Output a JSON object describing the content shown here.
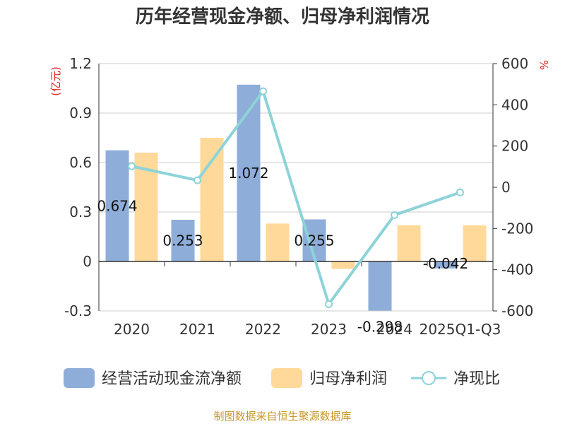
{
  "chart_data": {
    "type": "bar",
    "title": "历年经营现金净额、归母净利润情况",
    "categories": [
      "2020",
      "2021",
      "2022",
      "2023",
      "2024",
      "2025Q1-Q3"
    ],
    "left_axis": {
      "unit": "(亿元)",
      "min": -0.3,
      "max": 1.2,
      "ticks": [
        "1.2",
        "0.9",
        "0.6",
        "0.3",
        "0",
        "-0.3"
      ]
    },
    "right_axis": {
      "unit": "%",
      "min": -600,
      "max": 600,
      "ticks": [
        "600",
        "400",
        "200",
        "0",
        "-200",
        "-400",
        "-600"
      ]
    },
    "series": [
      {
        "name": "经营活动现金流净额",
        "axis": "left",
        "type": "bar",
        "color": "#8eadd9",
        "values": [
          0.674,
          0.253,
          1.072,
          0.255,
          -0.298,
          -0.042
        ],
        "labels": [
          "0.674",
          "0.253",
          "1.072",
          "0.255",
          "-0.298",
          "-0.042"
        ]
      },
      {
        "name": "归母净利润",
        "axis": "left",
        "type": "bar",
        "color": "#ffd99a",
        "values": [
          0.66,
          0.75,
          0.23,
          -0.045,
          0.22,
          0.22
        ]
      },
      {
        "name": "净现比",
        "axis": "right",
        "type": "line",
        "color": "#8dd3d8",
        "values": [
          102,
          34,
          466,
          -567,
          -135,
          -25
        ]
      }
    ],
    "source": "制图数据来自恒生聚源数据库"
  }
}
